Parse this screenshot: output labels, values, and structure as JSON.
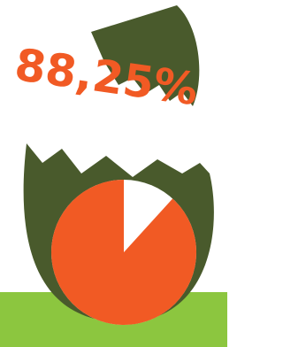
{
  "chart_data": {
    "type": "pie",
    "values": [
      88.25
    ],
    "value_labels": [
      "88,25%"
    ],
    "color": "#f15a24"
  }
}
